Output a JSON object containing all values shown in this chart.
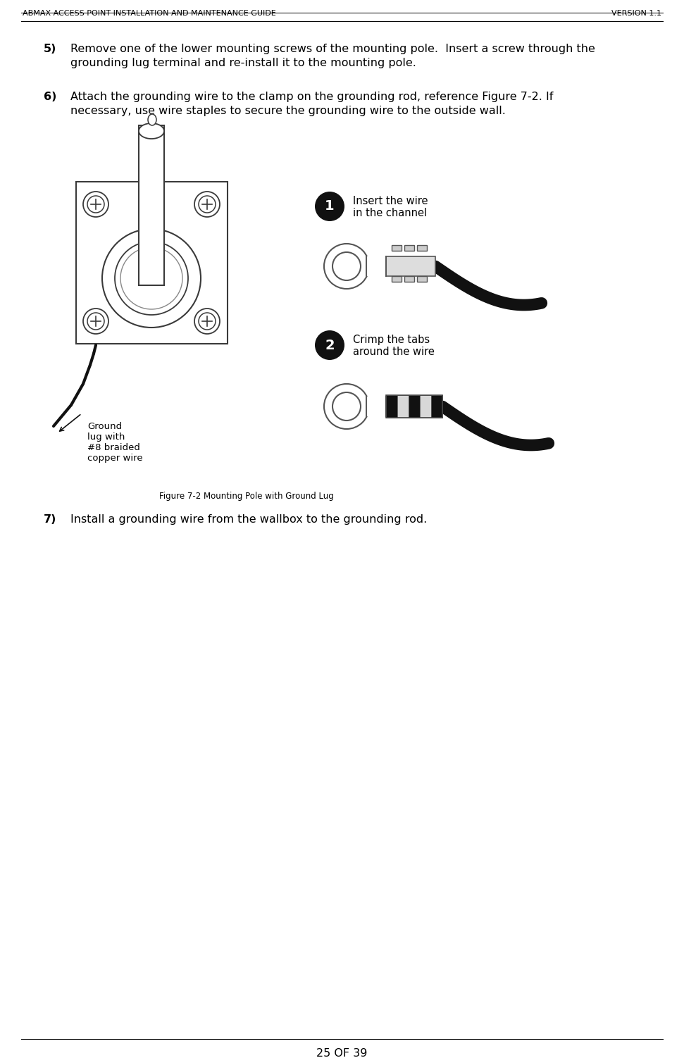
{
  "title_left": "ABMAX ACCESS POINT INSTALLATION AND MAINTENANCE GUIDE",
  "title_right": "VERSION 1.1",
  "header_fontsize": 8.0,
  "body_fontsize": 11.5,
  "small_fontsize": 9.0,
  "item5_label": "5)",
  "item5_text_line1": "Remove one of the lower mounting screws of the mounting pole.  Insert a screw through the",
  "item5_text_line2": "grounding lug terminal and re-install it to the mounting pole.",
  "item6_label": "6)",
  "item6_text_line1": "Attach the grounding wire to the clamp on the grounding rod, reference Figure 7-2. If",
  "item6_text_line2": "necessary, use wire staples to secure the grounding wire to the outside wall.",
  "item7_label": "7)",
  "item7_text": "Install a grounding wire from the wallbox to the grounding rod.",
  "figure_caption": "Figure 7-2 Mounting Pole with Ground Lug",
  "step1_label": "1",
  "step1_text": "Insert the wire\nin the channel",
  "step2_label": "2",
  "step2_text": "Crimp the tabs\naround the wire",
  "ground_lug_label": "Ground\nlug with\n#8 braided\ncopper wire",
  "page_number": "25 OF 39",
  "bg_color": "#ffffff",
  "text_color": "#000000",
  "dark_color": "#1a1a1a",
  "mid_color": "#505050",
  "line_color": "#000000"
}
